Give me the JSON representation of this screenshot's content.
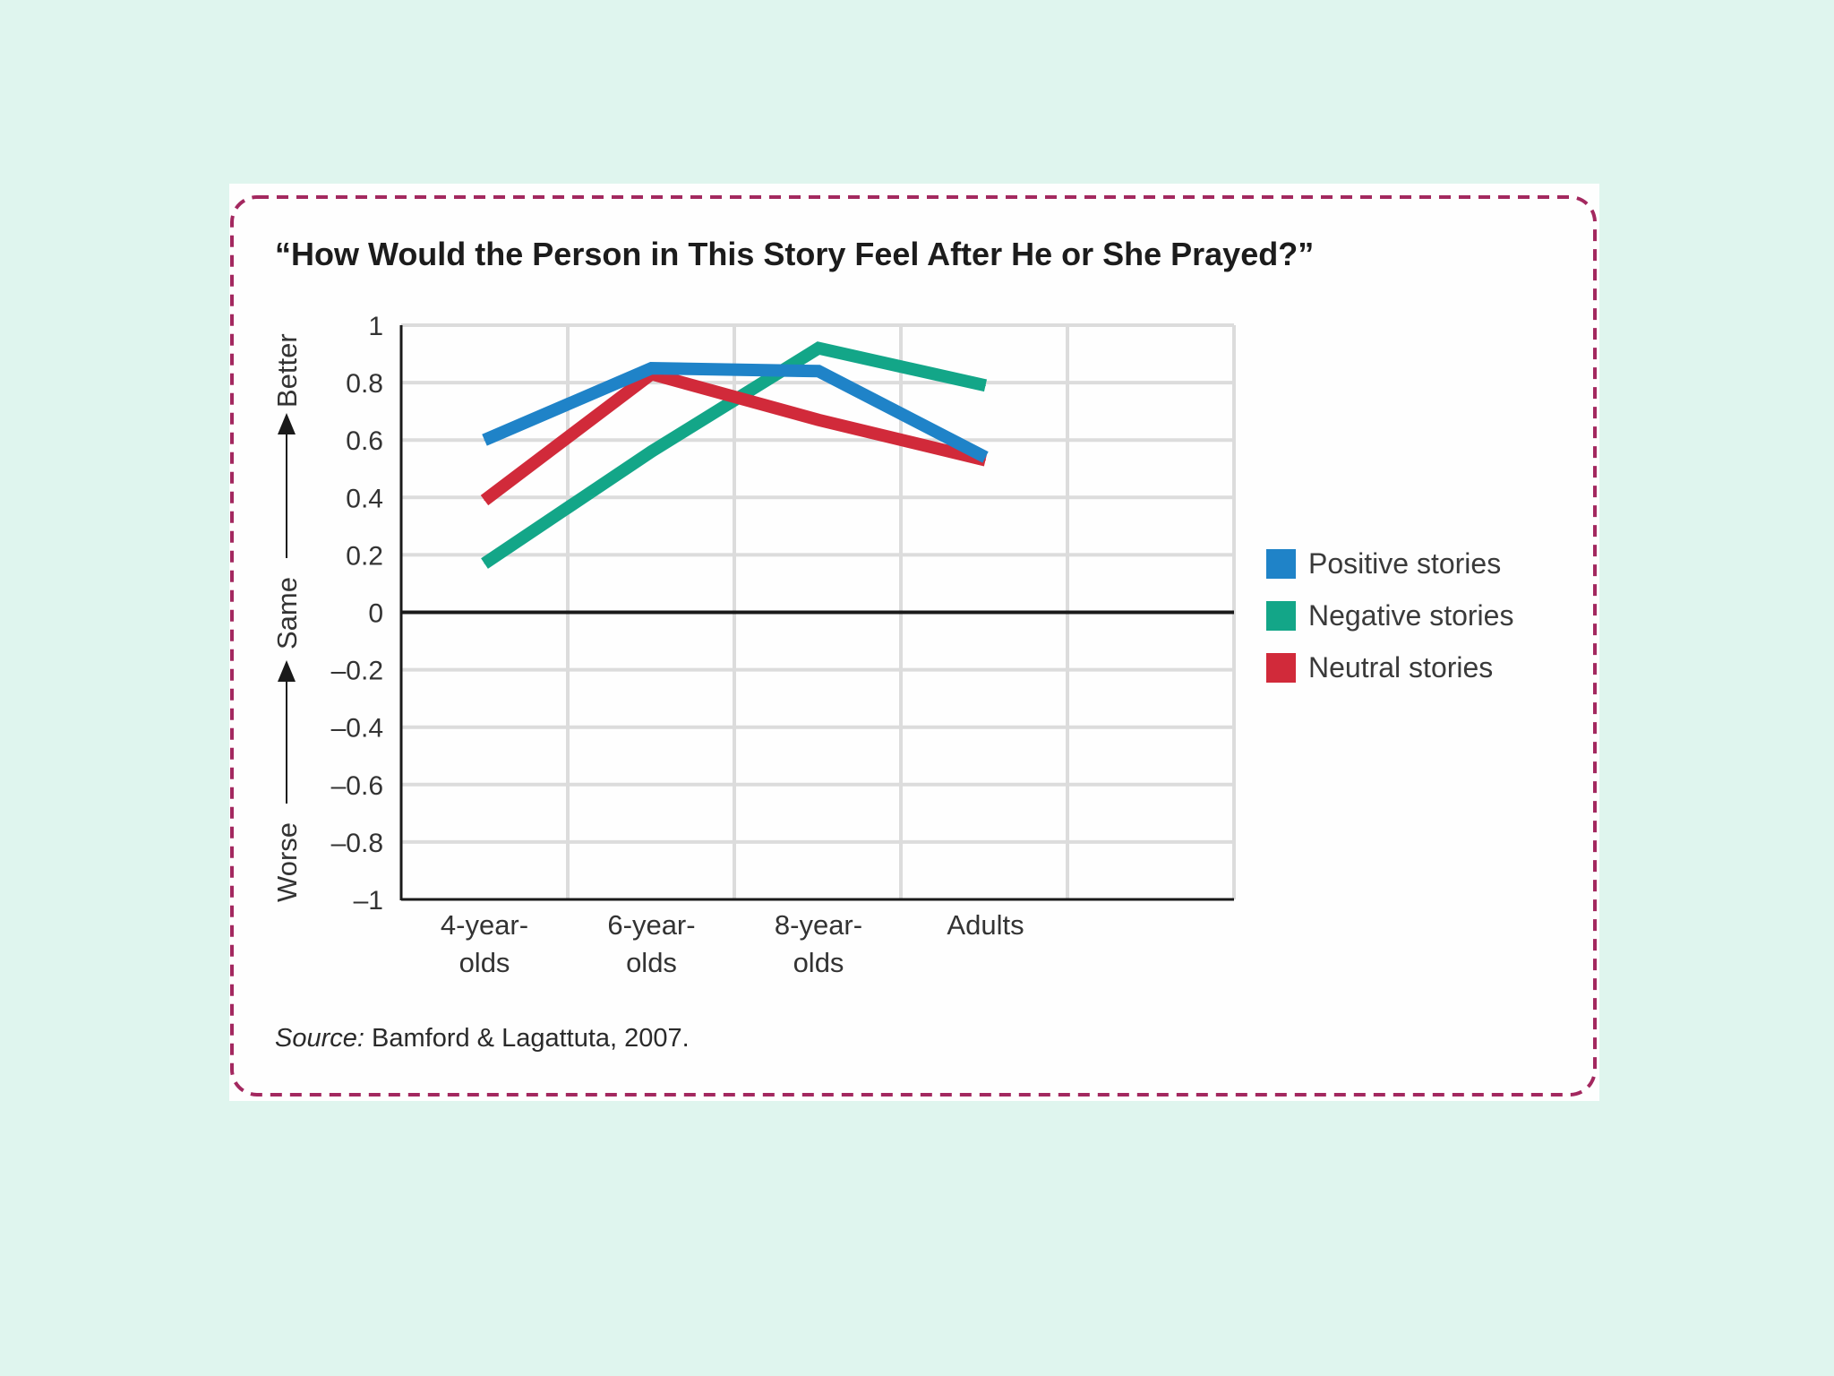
{
  "colors": {
    "background": "#dff5ee",
    "card": "#fefefe",
    "frame": "#a3285f",
    "positive": "#1f83c8",
    "negative": "#13a688",
    "neutral": "#d12a3a",
    "grid": "#dcdcdc",
    "axis": "#1a1a1a"
  },
  "chart_data": {
    "type": "line",
    "title": "“How Would the Person in This Story Feel After He or She Prayed?”",
    "xlabel": "",
    "ylabel_parts": [
      "Worse",
      "Same",
      "Better"
    ],
    "categories": [
      "4-year-olds",
      "6-year-olds",
      "8-year-olds",
      "Adults"
    ],
    "category_tick_labels": [
      [
        "4-year-",
        "olds"
      ],
      [
        "6-year-",
        "olds"
      ],
      [
        "8-year-",
        "olds"
      ],
      [
        "Adults"
      ]
    ],
    "ylim": [
      -1,
      1
    ],
    "yticks": [
      {
        "value": 1,
        "label": "1"
      },
      {
        "value": 0.8,
        "label": "0.8"
      },
      {
        "value": 0.6,
        "label": "0.6"
      },
      {
        "value": 0.4,
        "label": "0.4"
      },
      {
        "value": 0.2,
        "label": "0.2"
      },
      {
        "value": 0,
        "label": "0"
      },
      {
        "value": -0.2,
        "label": "–0.2"
      },
      {
        "value": -0.4,
        "label": "–0.4"
      },
      {
        "value": -0.6,
        "label": "–0.6"
      },
      {
        "value": -0.8,
        "label": "–0.8"
      },
      {
        "value": -1,
        "label": "–1"
      }
    ],
    "grid": true,
    "legend_position": "right",
    "series": [
      {
        "name": "Negative stories",
        "color": "#13a688",
        "values": [
          0.17,
          0.56,
          0.92,
          0.79
        ]
      },
      {
        "name": "Neutral stories",
        "color": "#d12a3a",
        "values": [
          0.39,
          0.83,
          0.67,
          0.53
        ]
      },
      {
        "name": "Positive stories",
        "color": "#1f83c8",
        "values": [
          0.6,
          0.85,
          0.84,
          0.54
        ]
      }
    ],
    "legend_order": [
      "Positive stories",
      "Negative stories",
      "Neutral stories"
    ],
    "source_prefix": "Source:",
    "source_text": " Bamford & Lagattuta, 2007."
  }
}
